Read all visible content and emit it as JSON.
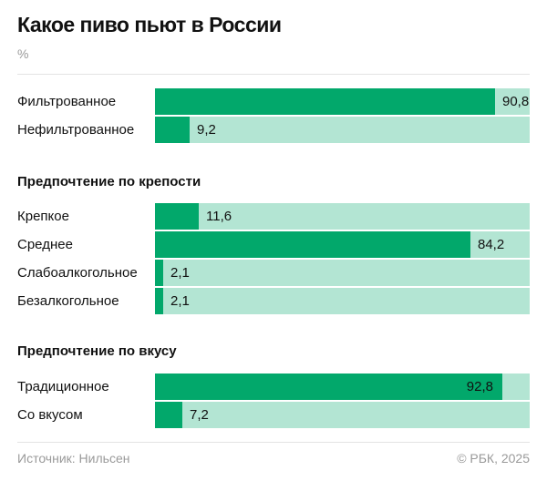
{
  "title": "Какое пиво пьют в России",
  "unit": "%",
  "colors": {
    "fill": "#02a86b",
    "track": "#b3e5d3"
  },
  "footer": {
    "source": "Источник: Нильсен",
    "copyright": "© РБК, 2025"
  },
  "chart_data": {
    "type": "bar",
    "orientation": "horizontal",
    "xlim": [
      0,
      100
    ],
    "groups": [
      {
        "heading": "",
        "categories": [
          "Фильтрованное",
          "Нефильтрованное"
        ],
        "values": [
          90.8,
          9.2
        ],
        "labels": [
          "90,8",
          "9,2"
        ]
      },
      {
        "heading": "Предпочтение по крепости",
        "categories": [
          "Крепкое",
          "Среднее",
          "Слабоалкогольное",
          "Безалкогольное"
        ],
        "values": [
          11.6,
          84.2,
          2.1,
          2.1
        ],
        "labels": [
          "11,6",
          "84,2",
          "2,1",
          "2,1"
        ]
      },
      {
        "heading": "Предпочтение по вкусу",
        "categories": [
          "Традиционное",
          "Со вкусом"
        ],
        "values": [
          92.8,
          7.2
        ],
        "labels": [
          "92,8",
          "7,2"
        ]
      }
    ]
  }
}
